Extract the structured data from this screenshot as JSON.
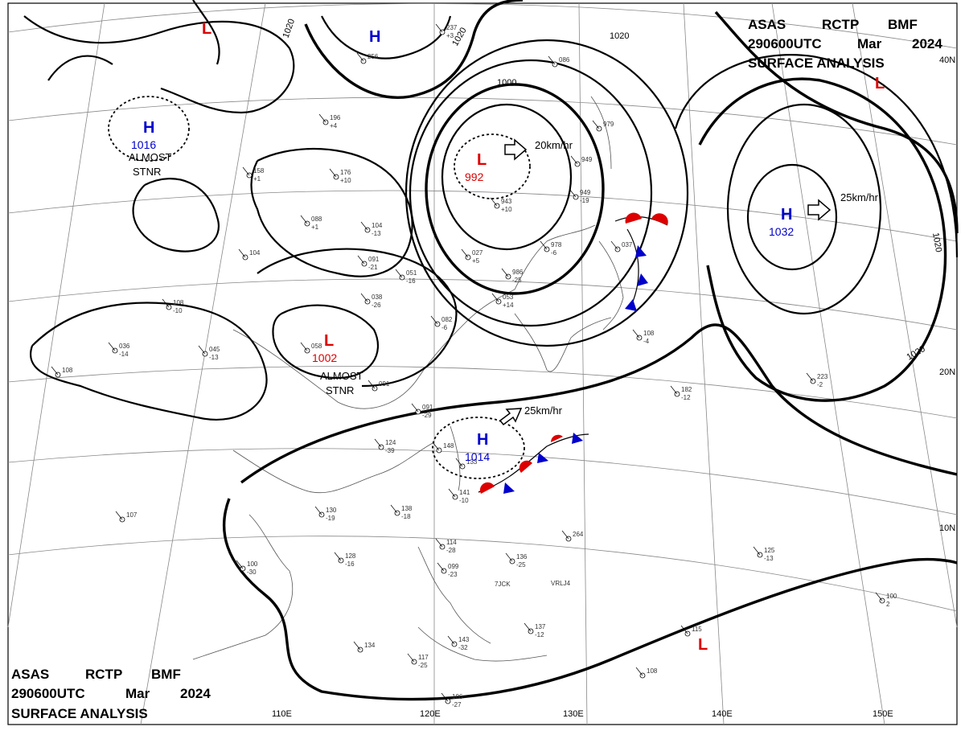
{
  "title_block": {
    "line1": [
      "ASAS",
      "RCTP",
      "BMF"
    ],
    "line2": [
      "290600UTC",
      "Mar",
      "2024"
    ],
    "line3": "SURFACE ANALYSIS"
  },
  "lat_labels": [
    "40N",
    "20N",
    "10N"
  ],
  "lon_labels": [
    "110E",
    "120E",
    "130E",
    "140E",
    "150E"
  ],
  "isobar_labels": [
    "1020",
    "1020",
    "1020",
    "1000",
    "1020",
    "1020"
  ],
  "pressure_centers": [
    {
      "type": "H",
      "value": "1016",
      "note": [
        "ALMOST",
        "STNR"
      ],
      "color": "#0000cc"
    },
    {
      "type": "H",
      "value": "",
      "note": [],
      "color": "#0000cc"
    },
    {
      "type": "L",
      "value": "",
      "note": [],
      "color": "#dd0000"
    },
    {
      "type": "L",
      "value": "992",
      "note": [],
      "color": "#dd0000",
      "motion": "20km/hr"
    },
    {
      "type": "L",
      "value": "",
      "note": [],
      "color": "#dd0000"
    },
    {
      "type": "H",
      "value": "1032",
      "note": [],
      "color": "#0000cc",
      "motion": "25km/hr"
    },
    {
      "type": "L",
      "value": "1002",
      "note": [
        "ALMOST",
        "STNR"
      ],
      "color": "#dd0000"
    },
    {
      "type": "H",
      "value": "1014",
      "note": [],
      "color": "#0000cc",
      "motion": "25km/hr"
    },
    {
      "type": "L",
      "value": "",
      "note": [],
      "color": "#dd0000"
    }
  ],
  "station_plots": [
    {
      "a": "237",
      "b": "+3"
    },
    {
      "a": "256",
      "b": ""
    },
    {
      "a": "196",
      "b": "+4"
    },
    {
      "a": "176",
      "b": "+10"
    },
    {
      "a": "158",
      "b": "+1"
    },
    {
      "a": "088",
      "b": "+1"
    },
    {
      "a": "104",
      "b": "-13"
    },
    {
      "a": "104",
      "b": ""
    },
    {
      "a": "091",
      "b": "-21"
    },
    {
      "a": "051",
      "b": "-16"
    },
    {
      "a": "038",
      "b": "-26"
    },
    {
      "a": "108",
      "b": "-10"
    },
    {
      "a": "036",
      "b": "-14"
    },
    {
      "a": "045",
      "b": "-13"
    },
    {
      "a": "058",
      "b": ""
    },
    {
      "a": "108",
      "b": ""
    },
    {
      "a": "091",
      "b": ""
    },
    {
      "a": "091",
      "b": "-29"
    },
    {
      "a": "124",
      "b": "-39"
    },
    {
      "a": "148",
      "b": ""
    },
    {
      "a": "141",
      "b": "-10"
    },
    {
      "a": "133",
      "b": ""
    },
    {
      "a": "130",
      "b": "-19"
    },
    {
      "a": "138",
      "b": "-18"
    },
    {
      "a": "107",
      "b": ""
    },
    {
      "a": "100",
      "b": "-30"
    },
    {
      "a": "128",
      "b": "-16"
    },
    {
      "a": "114",
      "b": "-28"
    },
    {
      "a": "099",
      "b": "-23"
    },
    {
      "a": "136",
      "b": "-25"
    },
    {
      "a": "264",
      "b": ""
    },
    {
      "a": "134",
      "b": ""
    },
    {
      "a": "117",
      "b": "-25"
    },
    {
      "a": "106",
      "b": "-27"
    },
    {
      "a": "143",
      "b": "-32"
    },
    {
      "a": "137",
      "b": "-12"
    },
    {
      "a": "125",
      "b": "-13"
    },
    {
      "a": "100",
      "b": "2"
    },
    {
      "a": "115",
      "b": ""
    },
    {
      "a": "108",
      "b": ""
    },
    {
      "a": "182",
      "b": "-12"
    },
    {
      "a": "223",
      "b": "-2"
    },
    {
      "a": "086",
      "b": ""
    },
    {
      "a": "949",
      "b": "-19"
    },
    {
      "a": "949",
      "b": ""
    },
    {
      "a": "943",
      "b": "+10"
    },
    {
      "a": "978",
      "b": "-6"
    },
    {
      "a": "986",
      "b": "-25"
    },
    {
      "a": "053",
      "b": "+14"
    },
    {
      "a": "027",
      "b": "+5"
    },
    {
      "a": "082",
      "b": "-6"
    },
    {
      "a": "037",
      "b": ""
    },
    {
      "a": "979",
      "b": ""
    },
    {
      "a": "108",
      "b": "-4"
    }
  ],
  "station_ids": [
    "7JCK",
    "VRLJ4"
  ]
}
